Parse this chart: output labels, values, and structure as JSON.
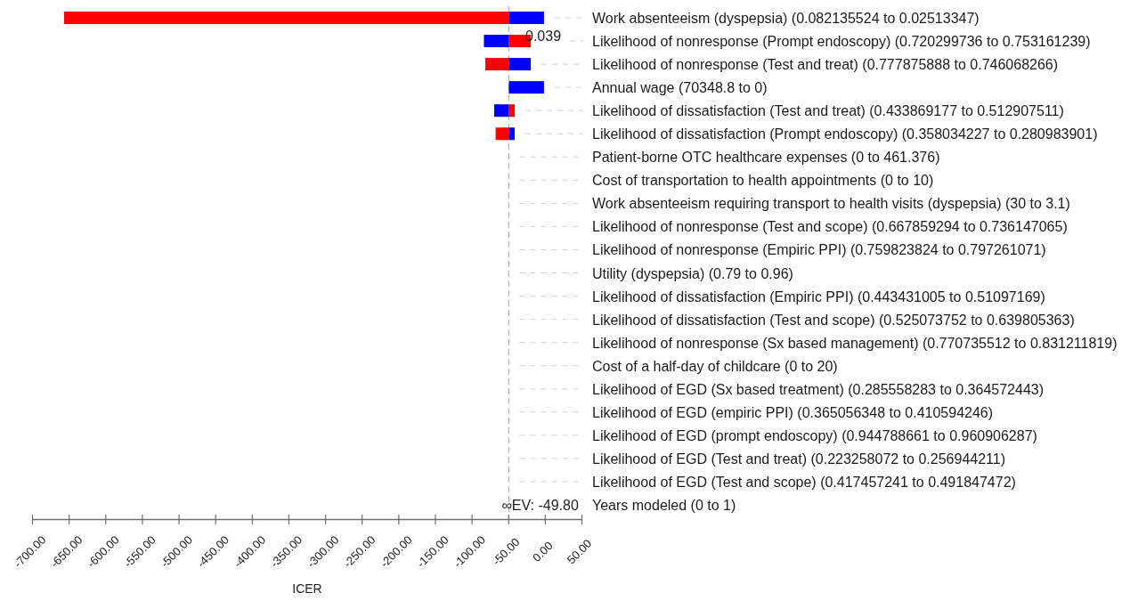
{
  "chart_data": {
    "type": "bar",
    "orientation": "horizontal",
    "xlabel": "ICER",
    "categories": [
      "Work absenteeism (dyspepsia) (0.082135524 to 0.02513347)",
      "Likelihood of nonresponse (Prompt endoscopy) (0.720299736 to 0.753161239)",
      "Likelihood of nonresponse (Test and treat) (0.777875888 to 0.746068266)",
      "Annual wage (70348.8 to 0)",
      "Likelihood of dissatisfaction (Test and treat) (0.433869177 to 0.512907511)",
      "Likelihood of dissatisfaction (Prompt endoscopy) (0.358034227 to 0.280983901)",
      "Patient-borne OTC healthcare expenses (0 to 461.376)",
      "Cost of transportation to health appointments (0 to 10)",
      "Work absenteeism requiring transport to health visits (dyspepsia) (30 to 3.1)",
      "Likelihood of nonresponse (Test and scope) (0.667859294 to 0.736147065)",
      "Likelihood of nonresponse (Empiric PPI) (0.759823824 to 0.797261071)",
      "Utility (dyspepsia) (0.79 to 0.96)",
      "Likelihood of dissatisfaction (Empiric PPI) (0.443431005 to 0.51097169)",
      "Likelihood of dissatisfaction (Test and scope) (0.525073752 to 0.639805363)",
      "Likelihood of nonresponse (Sx based management) (0.770735512 to 0.831211819)",
      "Cost of a half-day of childcare (0 to 20)",
      "Likelihood of EGD (Sx based treatment) (0.285558283 to 0.364572443)",
      "Likelihood of EGD (empiric PPI) (0.365056348 to 0.410594246)",
      "Likelihood of EGD (prompt endoscopy) (0.944788661 to 0.960906287)",
      "Likelihood of EGD (Test and treat) (0.223258072 to 0.256944211)",
      "Likelihood of EGD (Test and scope) (0.417457241 to 0.491847472)",
      "Years modeled (0 to 1)"
    ],
    "series": [
      {
        "color": "#ff0000",
        "base": [
          -49.8,
          -49.8,
          -49.8,
          null,
          -49.8,
          -49.8,
          null,
          null,
          null,
          null,
          null,
          null,
          null,
          null,
          null,
          null,
          null,
          null,
          null,
          null,
          null,
          null
        ],
        "values": [
          -607,
          30,
          -32,
          null,
          8,
          -18,
          null,
          null,
          null,
          null,
          null,
          null,
          null,
          null,
          null,
          null,
          null,
          null,
          null,
          null,
          null,
          null
        ]
      },
      {
        "color": "#0000ff",
        "base": [
          -49.8,
          -49.8,
          -49.8,
          -49.8,
          -49.8,
          -49.8,
          null,
          null,
          null,
          null,
          null,
          null,
          null,
          null,
          null,
          null,
          null,
          null,
          null,
          null,
          null,
          null
        ],
        "values": [
          48,
          -34,
          30,
          48,
          -20,
          8,
          null,
          null,
          null,
          null,
          null,
          null,
          null,
          null,
          null,
          null,
          null,
          null,
          null,
          null,
          null,
          null
        ]
      }
    ],
    "xlim": [
      -700,
      50
    ],
    "xticks": [
      {
        "value": -700,
        "label": "-700.00"
      },
      {
        "value": -650,
        "label": "-650.00"
      },
      {
        "value": -600,
        "label": "-600.00"
      },
      {
        "value": -550,
        "label": "-550.00"
      },
      {
        "value": -500,
        "label": "-500.00"
      },
      {
        "value": -450,
        "label": "-450.00"
      },
      {
        "value": -400,
        "label": "-400.00"
      },
      {
        "value": -350,
        "label": "-350.00"
      },
      {
        "value": -300,
        "label": "-300.00"
      },
      {
        "value": -250,
        "label": "-250.00"
      },
      {
        "value": -200,
        "label": "-200.00"
      },
      {
        "value": -150,
        "label": "-150.00"
      },
      {
        "value": -100,
        "label": "-100.00"
      },
      {
        "value": -50,
        "label": "-50.00"
      },
      {
        "value": 0,
        "label": "0.00"
      },
      {
        "value": 50,
        "label": "50.00"
      }
    ],
    "ref_lines": [
      {
        "axis": "x",
        "value": -49.8,
        "label": "∞EV: -49.80",
        "color": "#b4b4b4",
        "line_style": "dashed"
      }
    ],
    "annotations": [
      "0.039"
    ]
  }
}
